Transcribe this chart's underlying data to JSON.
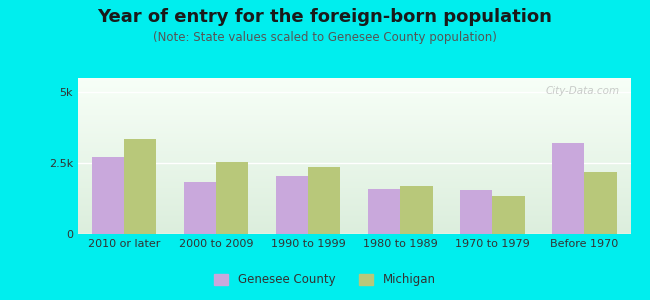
{
  "title": "Year of entry for the foreign-born population",
  "subtitle": "(Note: State values scaled to Genesee County population)",
  "categories": [
    "2010 or later",
    "2000 to 2009",
    "1990 to 1999",
    "1980 to 1989",
    "1970 to 1979",
    "Before 1970"
  ],
  "genesee_values": [
    2700,
    1850,
    2050,
    1600,
    1550,
    3200
  ],
  "michigan_values": [
    3350,
    2550,
    2350,
    1700,
    1350,
    2200
  ],
  "genesee_color": "#c9a8dc",
  "michigan_color": "#b8c87a",
  "background_color": "#00eeee",
  "plot_bg_top": "#dceedd",
  "plot_bg_bottom": "#f8fff8",
  "ylim": [
    0,
    5500
  ],
  "ytick_vals": [
    0,
    2500,
    5000
  ],
  "ytick_labels": [
    "0",
    "2.5k",
    "5k"
  ],
  "bar_width": 0.35,
  "legend_genesee": "Genesee County",
  "legend_michigan": "Michigan",
  "title_fontsize": 13,
  "subtitle_fontsize": 8.5,
  "tick_fontsize": 8,
  "legend_fontsize": 8.5,
  "watermark": "City-Data.com"
}
